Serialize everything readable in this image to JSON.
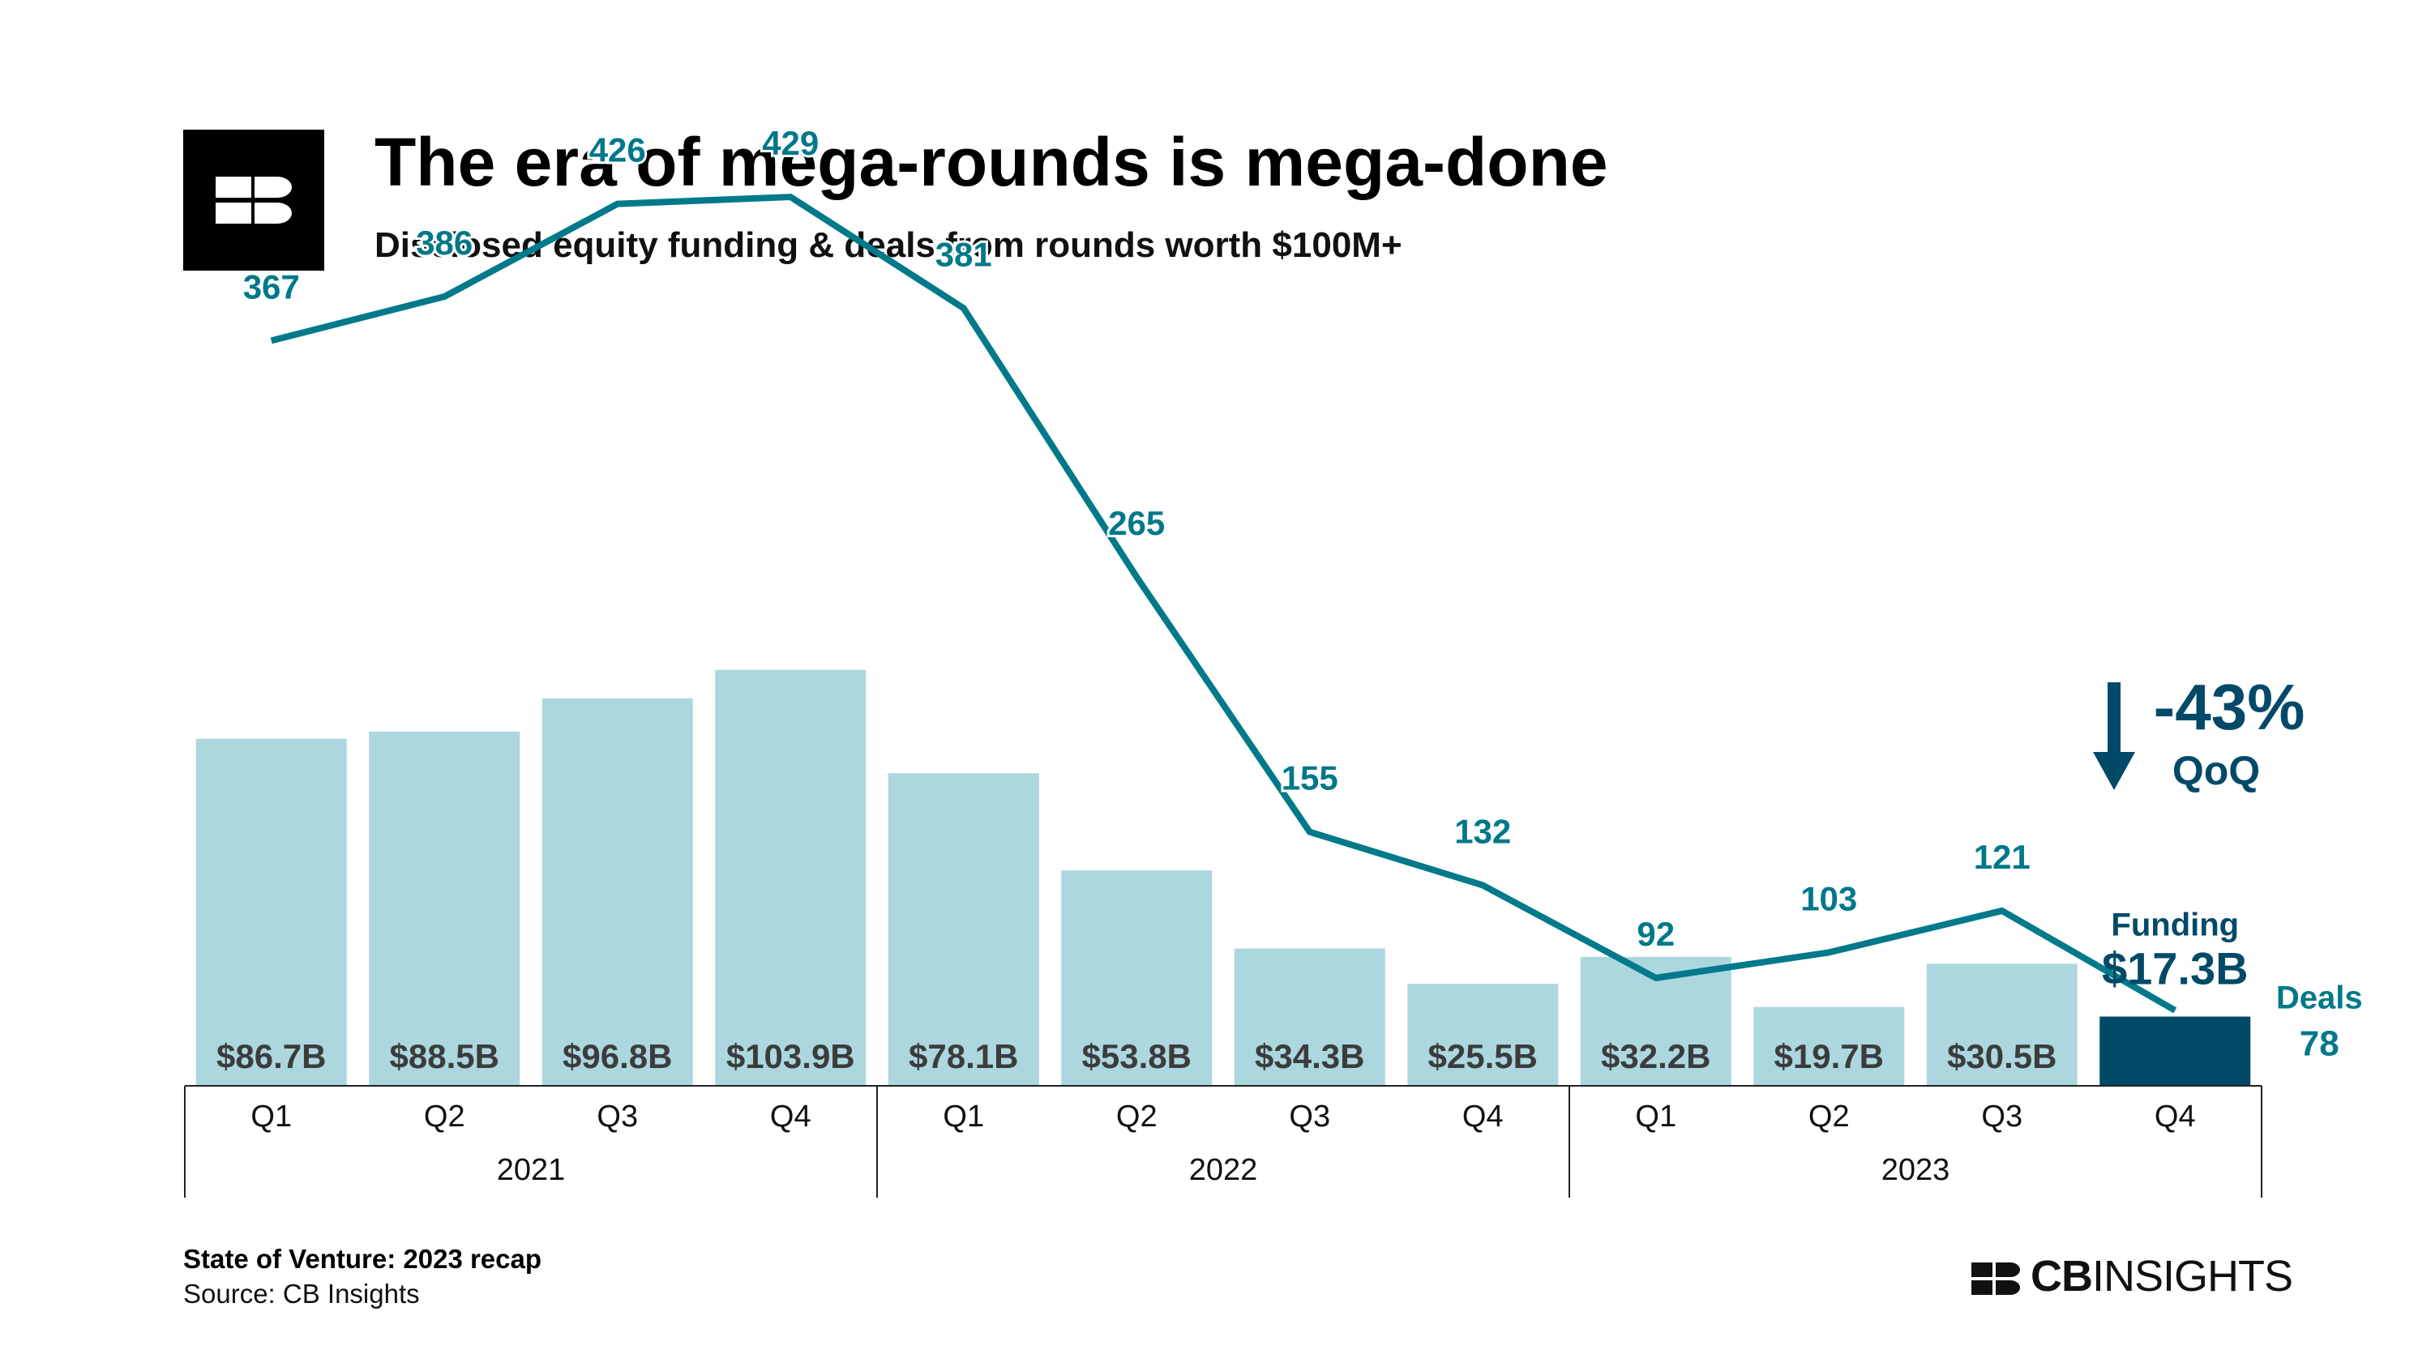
{
  "header": {
    "title": "The era of mega-rounds is mega-done",
    "subtitle": "Disclosed equity funding & deals from rounds worth $100M+",
    "logo_icon": "cb-insights-logo-icon"
  },
  "footer": {
    "report": "State of Venture: 2023 recap",
    "source": "Source: CB Insights",
    "brand_bold": "CB",
    "brand_light": "INSIGHTS"
  },
  "colors": {
    "bar": "#acd7df",
    "bar_highlight": "#004a68",
    "line": "#007a8a",
    "bar_label": "#3c3c3c",
    "deal_label": "#00788a",
    "callout": "#004a68"
  },
  "chart_data": {
    "type": "bar",
    "title": "The era of mega-rounds is mega-done",
    "subtitle": "Disclosed equity funding & deals from rounds worth $100M+",
    "categories": [
      "Q1",
      "Q2",
      "Q3",
      "Q4",
      "Q1",
      "Q2",
      "Q3",
      "Q4",
      "Q1",
      "Q2",
      "Q3",
      "Q4"
    ],
    "years": [
      {
        "label": "2021",
        "quarters": 4
      },
      {
        "label": "2022",
        "quarters": 4
      },
      {
        "label": "2023",
        "quarters": 4
      }
    ],
    "series": [
      {
        "name": "Funding",
        "type": "bar",
        "unit": "$B",
        "values": [
          86.7,
          88.5,
          96.8,
          103.9,
          78.1,
          53.8,
          34.3,
          25.5,
          32.2,
          19.7,
          30.5,
          17.3
        ],
        "labels": [
          "$86.7B",
          "$88.5B",
          "$96.8B",
          "$103.9B",
          "$78.1B",
          "$53.8B",
          "$34.3B",
          "$25.5B",
          "$32.2B",
          "$19.7B",
          "$30.5B",
          "$17.3B"
        ]
      },
      {
        "name": "Deals",
        "type": "line",
        "values": [
          367,
          386,
          426,
          429,
          381,
          265,
          155,
          132,
          92,
          103,
          121,
          78
        ],
        "labels": [
          "367",
          "386",
          "426",
          "429",
          "381",
          "265",
          "155",
          "132",
          "92",
          "103",
          "121",
          "78"
        ]
      }
    ],
    "highlight": {
      "index": 11,
      "funding_label": "Funding",
      "funding_value": "$17.3B",
      "deals_label": "Deals",
      "deals_value": "78"
    },
    "callout": {
      "value": "-43%",
      "label": "QoQ",
      "icon": "down-arrow-icon"
    },
    "grid": false,
    "legend": "none"
  }
}
